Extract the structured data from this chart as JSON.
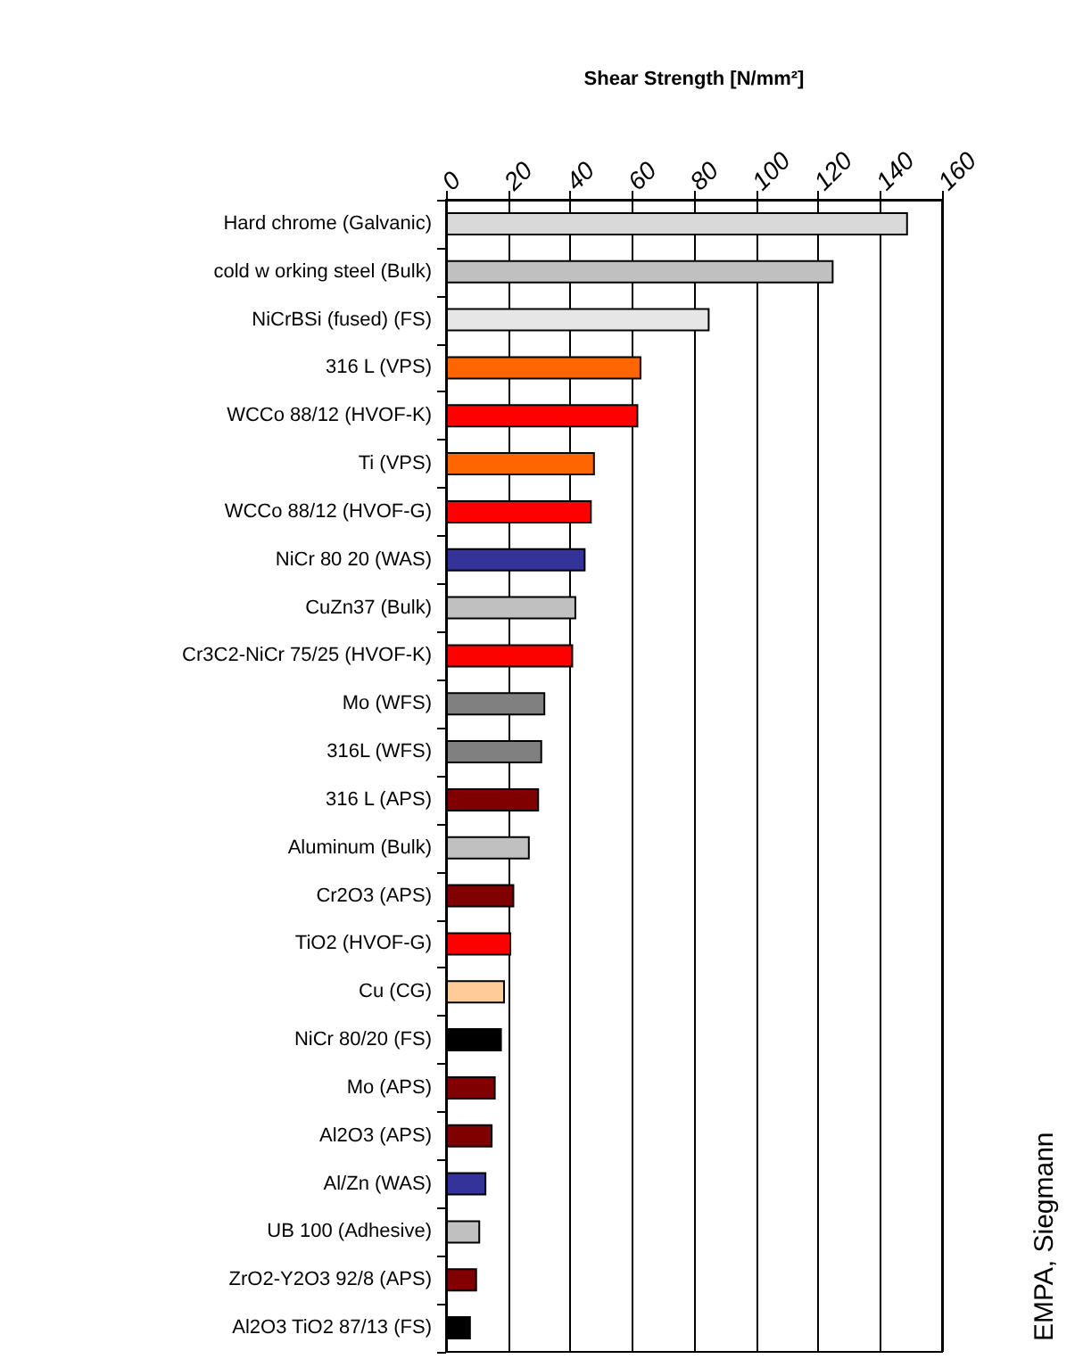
{
  "chart_data": {
    "type": "bar",
    "orientation": "horizontal",
    "xlabel": "Shear Strength [N/mm²]",
    "categories": [
      "Hard chrome (Galvanic)",
      "cold w orking steel (Bulk)",
      "NiCrBSi (fused) (FS)",
      "316 L (VPS)",
      "WCCo 88/12 (HVOF-K)",
      "Ti (VPS)",
      "WCCo 88/12 (HVOF-G)",
      "NiCr 80 20 (WAS)",
      "CuZn37 (Bulk)",
      "Cr3C2-NiCr 75/25 (HVOF-K)",
      "Mo (WFS)",
      "316L (WFS)",
      "316 L (APS)",
      "Aluminum (Bulk)",
      "Cr2O3 (APS)",
      "TiO2 (HVOF-G)",
      "Cu (CG)",
      "NiCr 80/20 (FS)",
      "Mo (APS)",
      "Al2O3 (APS)",
      "Al/Zn (WAS)",
      "UB 100 (Adhesive)",
      "ZrO2-Y2O3 92/8 (APS)",
      "Al2O3 TiO2 87/13 (FS)"
    ],
    "values": [
      149,
      125,
      85,
      63,
      62,
      48,
      47,
      45,
      42,
      41,
      32,
      31,
      30,
      27,
      22,
      21,
      19,
      18,
      16,
      15,
      13,
      11,
      10,
      8
    ],
    "colors": [
      "#d9d9d9",
      "#c0c0c0",
      "#e6e6e6",
      "#ff6600",
      "#ff0000",
      "#ff6600",
      "#ff0000",
      "#333399",
      "#c0c0c0",
      "#ff0000",
      "#808080",
      "#808080",
      "#800000",
      "#c0c0c0",
      "#800000",
      "#ff0000",
      "#ffcc99",
      "#000000",
      "#800000",
      "#800000",
      "#333399",
      "#c0c0c0",
      "#800000",
      "#000000"
    ],
    "xlim": [
      0,
      160
    ],
    "xticks": [
      0,
      20,
      40,
      60,
      80,
      100,
      120,
      140,
      160
    ],
    "grid": "x",
    "annotations": [
      "EMPA, Siegmann"
    ]
  }
}
